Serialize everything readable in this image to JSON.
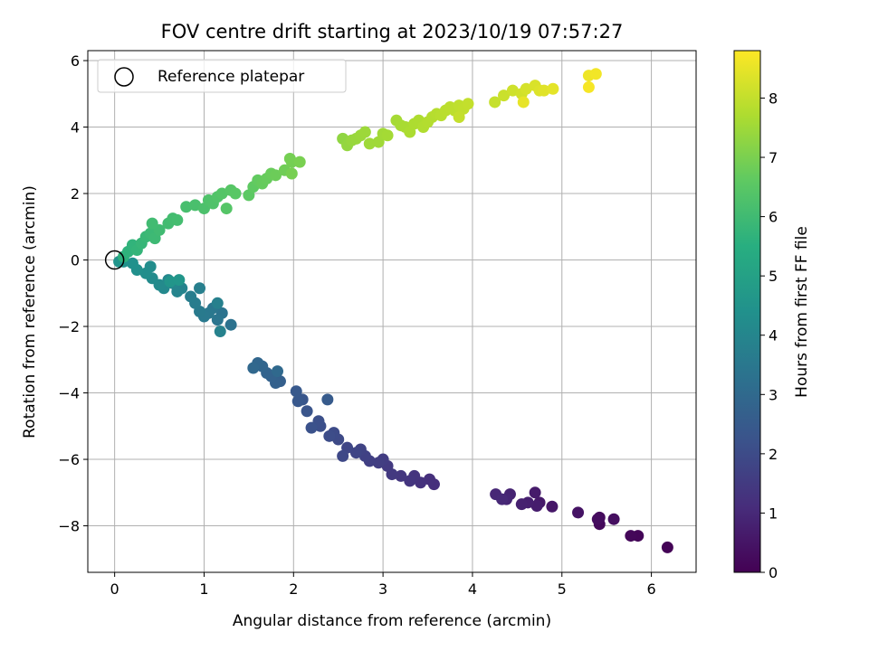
{
  "chart_data": {
    "type": "scatter",
    "title": "FOV centre drift starting at 2023/10/19 07:57:27",
    "xlabel": "Angular distance from reference (arcmin)",
    "ylabel": "Rotation from reference (arcmin)",
    "xlim": [
      -0.3,
      6.5
    ],
    "ylim": [
      -9.4,
      6.3
    ],
    "xticks": [
      0,
      1,
      2,
      3,
      4,
      5,
      6
    ],
    "yticks": [
      -8,
      -6,
      -4,
      -2,
      0,
      2,
      4,
      6
    ],
    "grid": true,
    "legend": {
      "placement": "upper-left",
      "entries": [
        "Reference platepar"
      ]
    },
    "colorbar": {
      "label": "Hours from first FF file",
      "colormap": "viridis",
      "range": [
        0,
        8.8
      ],
      "ticks": [
        0,
        1,
        2,
        3,
        4,
        5,
        6,
        7,
        8
      ]
    },
    "reference_point": {
      "x": 0,
      "y": 0
    },
    "points": [
      [
        6.18,
        -8.65,
        0.05
      ],
      [
        5.85,
        -8.3,
        0.1
      ],
      [
        5.77,
        -8.3,
        0.15
      ],
      [
        5.42,
        -7.95,
        0.2
      ],
      [
        5.42,
        -7.75,
        0.25
      ],
      [
        5.4,
        -7.8,
        0.3
      ],
      [
        5.58,
        -7.8,
        0.35
      ],
      [
        5.18,
        -7.6,
        0.45
      ],
      [
        4.89,
        -7.42,
        0.55
      ],
      [
        4.75,
        -7.3,
        0.6
      ],
      [
        4.7,
        -7.0,
        0.65
      ],
      [
        4.72,
        -7.4,
        0.7
      ],
      [
        4.62,
        -7.3,
        0.75
      ],
      [
        4.55,
        -7.35,
        0.8
      ],
      [
        4.42,
        -7.05,
        0.85
      ],
      [
        4.38,
        -7.2,
        0.9
      ],
      [
        4.26,
        -7.05,
        0.95
      ],
      [
        4.33,
        -7.2,
        1.0
      ],
      [
        3.57,
        -6.75,
        1.15
      ],
      [
        3.52,
        -6.6,
        1.2
      ],
      [
        3.42,
        -6.7,
        1.25
      ],
      [
        3.35,
        -6.5,
        1.3
      ],
      [
        3.3,
        -6.65,
        1.35
      ],
      [
        3.2,
        -6.5,
        1.4
      ],
      [
        3.1,
        -6.45,
        1.45
      ],
      [
        3.05,
        -6.2,
        1.5
      ],
      [
        3.0,
        -6.0,
        1.55
      ],
      [
        2.95,
        -6.1,
        1.6
      ],
      [
        2.85,
        -6.05,
        1.65
      ],
      [
        2.8,
        -5.9,
        1.7
      ],
      [
        2.75,
        -5.7,
        1.75
      ],
      [
        2.7,
        -5.8,
        1.8
      ],
      [
        2.6,
        -5.65,
        1.85
      ],
      [
        2.55,
        -5.9,
        1.9
      ],
      [
        2.5,
        -5.4,
        1.95
      ],
      [
        2.45,
        -5.2,
        2.0
      ],
      [
        2.4,
        -5.3,
        2.05
      ],
      [
        2.3,
        -5.0,
        2.1
      ],
      [
        2.28,
        -4.85,
        2.15
      ],
      [
        2.2,
        -5.05,
        2.2
      ],
      [
        2.15,
        -4.55,
        2.3
      ],
      [
        2.1,
        -4.2,
        2.35
      ],
      [
        2.05,
        -4.25,
        2.4
      ],
      [
        2.03,
        -3.95,
        2.45
      ],
      [
        2.38,
        -4.2,
        2.5
      ],
      [
        1.85,
        -3.65,
        2.65
      ],
      [
        1.8,
        -3.7,
        2.7
      ],
      [
        1.75,
        -3.5,
        2.75
      ],
      [
        1.7,
        -3.4,
        2.8
      ],
      [
        1.65,
        -3.2,
        2.85
      ],
      [
        1.6,
        -3.1,
        2.9
      ],
      [
        1.55,
        -3.25,
        2.95
      ],
      [
        1.82,
        -3.35,
        3.0
      ],
      [
        1.3,
        -1.95,
        3.3
      ],
      [
        1.2,
        -1.6,
        3.35
      ],
      [
        1.15,
        -1.8,
        3.4
      ],
      [
        1.1,
        -1.45,
        3.45
      ],
      [
        1.05,
        -1.6,
        3.5
      ],
      [
        1.0,
        -1.7,
        3.55
      ],
      [
        0.95,
        -1.55,
        3.6
      ],
      [
        0.9,
        -1.3,
        3.65
      ],
      [
        0.85,
        -1.1,
        3.7
      ],
      [
        0.95,
        -0.85,
        3.75
      ],
      [
        1.15,
        -1.3,
        3.8
      ],
      [
        1.18,
        -2.15,
        3.85
      ],
      [
        0.75,
        -0.85,
        3.9
      ],
      [
        0.7,
        -0.95,
        3.95
      ],
      [
        0.65,
        -0.7,
        4.0
      ],
      [
        0.6,
        -0.6,
        4.05
      ],
      [
        0.55,
        -0.85,
        4.1
      ],
      [
        0.5,
        -0.75,
        4.15
      ],
      [
        0.42,
        -0.55,
        4.2
      ],
      [
        0.4,
        -0.2,
        4.25
      ],
      [
        0.35,
        -0.4,
        4.3
      ],
      [
        0.25,
        -0.3,
        4.35
      ],
      [
        0.2,
        -0.1,
        4.4
      ],
      [
        0.1,
        -0.05,
        4.45
      ],
      [
        0.05,
        -0.05,
        4.5
      ],
      [
        0.62,
        -0.65,
        4.55
      ],
      [
        0.72,
        -0.6,
        4.6
      ],
      [
        0.1,
        0.1,
        5.6
      ],
      [
        0.15,
        0.25,
        5.65
      ],
      [
        0.2,
        0.45,
        5.7
      ],
      [
        0.25,
        0.3,
        5.75
      ],
      [
        0.3,
        0.5,
        5.8
      ],
      [
        0.35,
        0.7,
        5.85
      ],
      [
        0.4,
        0.8,
        5.9
      ],
      [
        0.45,
        0.65,
        5.95
      ],
      [
        0.5,
        0.9,
        6.0
      ],
      [
        0.42,
        1.1,
        6.02
      ],
      [
        0.6,
        1.1,
        6.05
      ],
      [
        0.65,
        1.25,
        6.08
      ],
      [
        0.7,
        1.2,
        6.1
      ],
      [
        0.8,
        1.6,
        6.15
      ],
      [
        0.9,
        1.65,
        6.2
      ],
      [
        1.0,
        1.55,
        6.25
      ],
      [
        1.05,
        1.8,
        6.3
      ],
      [
        1.1,
        1.7,
        6.32
      ],
      [
        1.15,
        1.9,
        6.35
      ],
      [
        1.2,
        2.0,
        6.4
      ],
      [
        1.25,
        1.55,
        6.42
      ],
      [
        1.3,
        2.1,
        6.45
      ],
      [
        1.35,
        2.0,
        6.5
      ],
      [
        1.5,
        1.95,
        6.55
      ],
      [
        1.55,
        2.2,
        6.6
      ],
      [
        1.6,
        2.4,
        6.65
      ],
      [
        1.65,
        2.3,
        6.7
      ],
      [
        1.7,
        2.45,
        6.72
      ],
      [
        1.75,
        2.6,
        6.75
      ],
      [
        1.8,
        2.55,
        6.8
      ],
      [
        1.9,
        2.7,
        6.85
      ],
      [
        1.98,
        2.95,
        6.9
      ],
      [
        1.96,
        3.05,
        6.92
      ],
      [
        1.98,
        2.6,
        6.95
      ],
      [
        2.07,
        2.95,
        6.98
      ],
      [
        2.55,
        3.65,
        7.3
      ],
      [
        2.6,
        3.45,
        7.35
      ],
      [
        2.65,
        3.6,
        7.4
      ],
      [
        2.7,
        3.65,
        7.42
      ],
      [
        2.75,
        3.75,
        7.45
      ],
      [
        2.8,
        3.85,
        7.48
      ],
      [
        2.85,
        3.5,
        7.5
      ],
      [
        2.95,
        3.55,
        7.52
      ],
      [
        3.0,
        3.8,
        7.55
      ],
      [
        3.05,
        3.75,
        7.58
      ],
      [
        3.15,
        4.2,
        7.6
      ],
      [
        3.2,
        4.05,
        7.62
      ],
      [
        3.25,
        4.0,
        7.65
      ],
      [
        3.3,
        3.85,
        7.68
      ],
      [
        3.35,
        4.1,
        7.7
      ],
      [
        3.4,
        4.2,
        7.72
      ],
      [
        3.45,
        4.0,
        7.75
      ],
      [
        3.5,
        4.15,
        7.78
      ],
      [
        3.55,
        4.3,
        7.8
      ],
      [
        3.6,
        4.4,
        7.82
      ],
      [
        3.65,
        4.35,
        7.85
      ],
      [
        3.7,
        4.5,
        7.88
      ],
      [
        3.75,
        4.6,
        7.9
      ],
      [
        3.8,
        4.5,
        7.92
      ],
      [
        3.85,
        4.65,
        7.95
      ],
      [
        3.9,
        4.55,
        7.97
      ],
      [
        3.95,
        4.7,
        8.0
      ],
      [
        3.85,
        4.3,
        8.02
      ],
      [
        4.25,
        4.75,
        8.05
      ],
      [
        4.35,
        4.95,
        8.1
      ],
      [
        4.45,
        5.1,
        8.15
      ],
      [
        4.55,
        5.0,
        8.2
      ],
      [
        4.6,
        5.15,
        8.25
      ],
      [
        4.7,
        5.25,
        8.3
      ],
      [
        4.75,
        5.1,
        8.35
      ],
      [
        4.8,
        5.1,
        8.4
      ],
      [
        4.9,
        5.15,
        8.45
      ],
      [
        4.57,
        4.75,
        8.5
      ],
      [
        5.3,
        5.55,
        8.6
      ],
      [
        5.38,
        5.6,
        8.65
      ],
      [
        5.3,
        5.2,
        8.7
      ]
    ]
  }
}
